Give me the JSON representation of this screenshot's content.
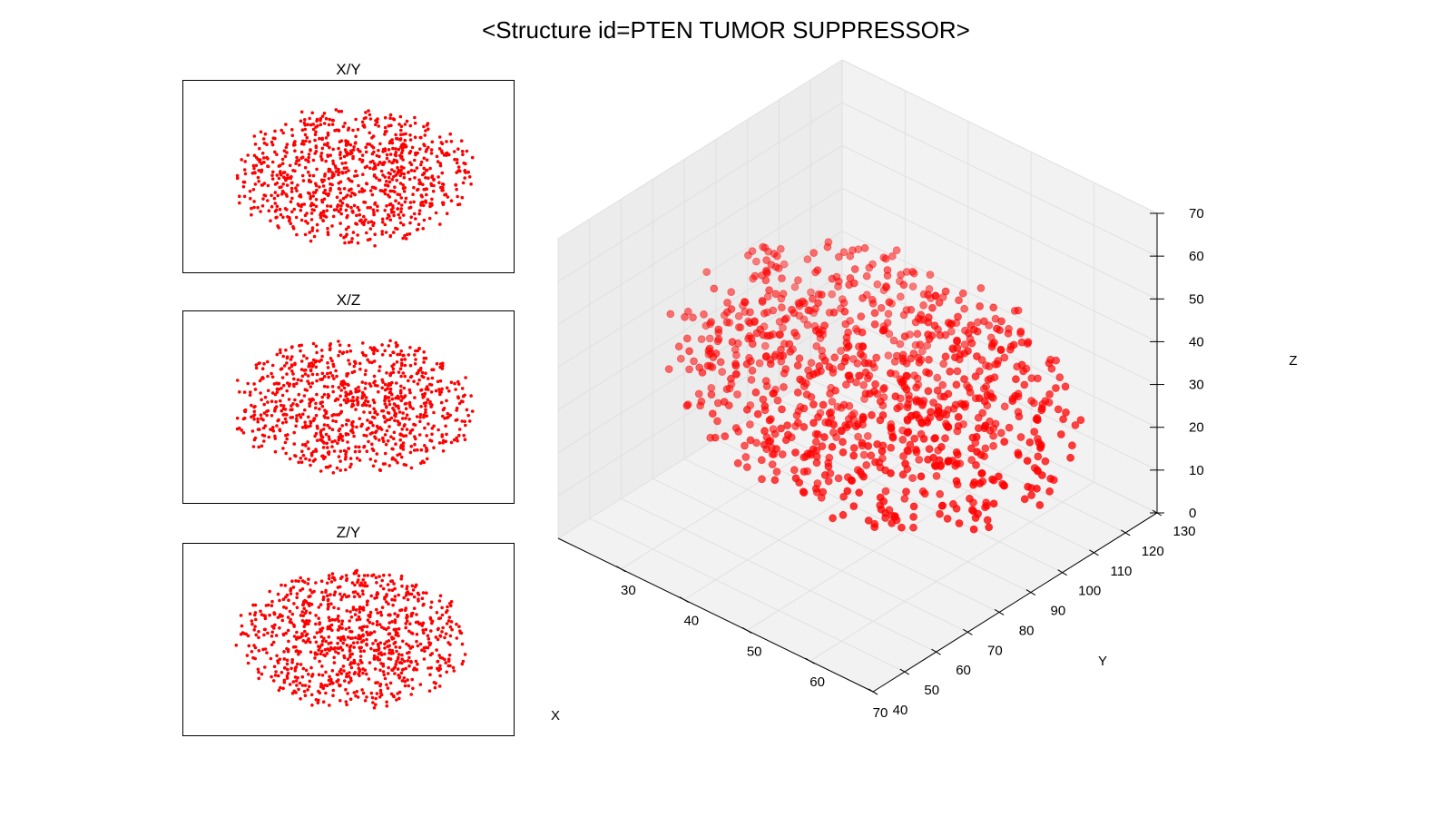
{
  "figure": {
    "title": "<Structure id=PTEN TUMOR SUPPRESSOR>"
  },
  "chart_data": [
    {
      "type": "scatter",
      "projection": "3d",
      "title": "",
      "xlabel": "X",
      "ylabel": "Y",
      "zlabel": "Z",
      "xlim": [
        20,
        70
      ],
      "ylim": [
        40,
        130
      ],
      "zlim": [
        0,
        70
      ],
      "xticks": [
        "30",
        "40",
        "50",
        "60",
        "70"
      ],
      "yticks": [
        "40",
        "50",
        "60",
        "70",
        "80",
        "90",
        "100",
        "110",
        "120",
        "130"
      ],
      "zticks": [
        "0",
        "10",
        "20",
        "30",
        "40",
        "50",
        "60",
        "70"
      ],
      "grid": true,
      "marker_color": "#ff0000",
      "point_count": 900,
      "x_range_of_points": [
        18,
        72
      ],
      "y_range_of_points": [
        55,
        125
      ],
      "z_range_of_points": [
        8,
        52
      ]
    },
    {
      "type": "scatter",
      "title": "X/Y",
      "marker_color": "#ff0000",
      "axes_visible": false
    },
    {
      "type": "scatter",
      "title": "X/Z",
      "marker_color": "#ff0000",
      "axes_visible": false
    },
    {
      "type": "scatter",
      "title": "Z/Y",
      "marker_color": "#ff0000",
      "axes_visible": false
    }
  ],
  "colors": {
    "marker": "#ff0000",
    "pane": "#f2f2f2",
    "pane_side": "#ececec",
    "grid": "#e0e0e0"
  }
}
